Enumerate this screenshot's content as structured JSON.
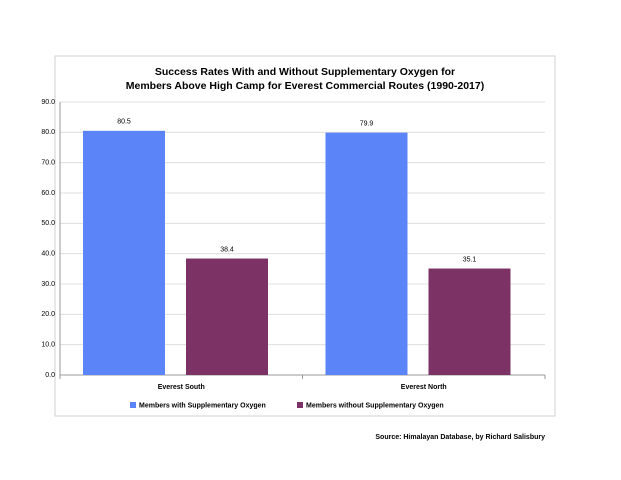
{
  "chart_data": {
    "type": "bar",
    "title": [
      "Success Rates With and Without Supplementary Oxygen for",
      "Members Above High Camp for Everest Commercial Routes (1990-2017)"
    ],
    "categories": [
      "Everest South",
      "Everest North"
    ],
    "series": [
      {
        "name": "Members with Supplementary Oxygen",
        "color": "#5b84f8",
        "values": [
          80.5,
          79.9
        ]
      },
      {
        "name": "Members without Supplementary Oxygen",
        "color": "#7d3266",
        "values": [
          38.4,
          35.1
        ]
      }
    ],
    "ylim": [
      0,
      90
    ],
    "yticks": [
      {
        "value": 0,
        "label": "0.0"
      },
      {
        "value": 10,
        "label": "10.0"
      },
      {
        "value": 20,
        "label": "20.0"
      },
      {
        "value": 30,
        "label": "30.0"
      },
      {
        "value": 40,
        "label": "40.0"
      },
      {
        "value": 50,
        "label": "50.0"
      },
      {
        "value": 60,
        "label": "60.0"
      },
      {
        "value": 70,
        "label": "70.0"
      },
      {
        "value": 80,
        "label": "80.0"
      },
      {
        "value": 90,
        "label": "90.0"
      }
    ],
    "grid": true,
    "legend": "bottom",
    "source": "Source: Himalayan Database, by Richard Salisbury"
  }
}
